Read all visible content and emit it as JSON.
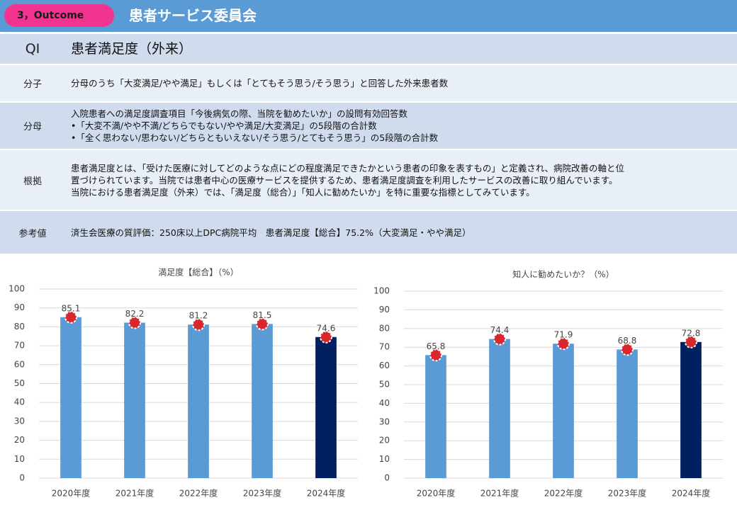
{
  "header": {
    "badge": "3，Outcome",
    "title": "患者サービス委員会"
  },
  "table": {
    "rows": [
      {
        "label": "QI",
        "lines": [
          "患者満足度（外来）"
        ]
      },
      {
        "label": "分子",
        "lines": [
          "分母のうち「大変満足/やや満足」もしくは「とてもそう思う/そう思う」と回答した外来患者数"
        ]
      },
      {
        "label": "分母",
        "lines": [
          "入院患者への満足度調査項目「今後病気の際、当院を勧めたいか」の設問有効回答数",
          "•「大変不満/やや不満/どちらでもない/やや満足/大変満足」の5段階の合計数",
          "•「全く思わない/思わない/どちらともいえない/そう思う/とてもそう思う」の5段階の合計数"
        ]
      },
      {
        "label": "根拠",
        "lines": [
          "患者満足度とは、「受けた医療に対してどのような点にどの程度満足できたかという患者の印象を表すもの」と定義され、病院改善の軸と位",
          "置づけられています。当院では患者中心の医療サービスを提供するため、患者満足度調査を利用したサービスの改善に取り組んでいます。",
          "当院における患者満足度（外来）では、「満足度（総合）」「知人に勧めたいか」を特に重要な指標としてみています。"
        ]
      },
      {
        "label": "参考値",
        "lines": [
          "済生会医療の質評価：250床以上DPC病院平均　患者満足度【総合】75.2%（大変満足・やや満足）"
        ]
      }
    ]
  },
  "chart_data": [
    {
      "type": "bar",
      "title": "満足度【総合】（%）",
      "categories": [
        "2020年度",
        "2021年度",
        "2022年度",
        "2023年度",
        "2024年度"
      ],
      "values": [
        85.1,
        82.2,
        81.2,
        81.5,
        74.6
      ],
      "colors": [
        "#5b9bd5",
        "#5b9bd5",
        "#5b9bd5",
        "#5b9bd5",
        "#002060"
      ],
      "ylim": [
        0,
        100
      ],
      "yticks": [
        0,
        10,
        20,
        30,
        40,
        50,
        60,
        70,
        80,
        90,
        100
      ],
      "grid": true
    },
    {
      "type": "bar",
      "title": "知人に勧めたいか？（%）",
      "categories": [
        "2020年度",
        "2021年度",
        "2022年度",
        "2023年度",
        "2024年度"
      ],
      "values": [
        65.8,
        74.4,
        71.9,
        68.8,
        72.8
      ],
      "colors": [
        "#5b9bd5",
        "#5b9bd5",
        "#5b9bd5",
        "#5b9bd5",
        "#002060"
      ],
      "ylim": [
        0,
        100
      ],
      "yticks": [
        0,
        10,
        20,
        30,
        40,
        50,
        60,
        70,
        80,
        90,
        100
      ],
      "grid": true
    }
  ]
}
